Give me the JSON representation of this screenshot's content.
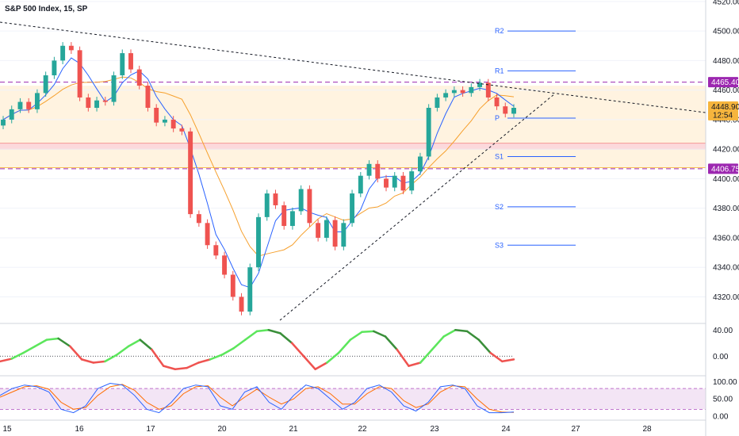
{
  "chart_data": {
    "type": "candlestick",
    "title": "S&P 500 Index, 15, SP",
    "price_axis": {
      "ylim": [
        4302,
        4521
      ],
      "ticks": [
        4320,
        4340,
        4360,
        4380,
        4400,
        4420,
        4440,
        4460,
        4480,
        4500,
        4520
      ],
      "tick_labels": [
        "4320.00",
        "4340.00",
        "4360.00",
        "4380.00",
        "4400.00",
        "4420.00",
        "4440.00",
        "4460.00",
        "4480.00",
        "4500.00",
        "4520.00"
      ]
    },
    "time_axis": {
      "labels": [
        "15",
        "16",
        "17",
        "20",
        "21",
        "22",
        "23",
        "24",
        "27",
        "28"
      ]
    },
    "price_tags": [
      {
        "label": "4465.40",
        "value": 4465.4,
        "color": "#9c27b0"
      },
      {
        "label": "4406.75",
        "value": 4406.75,
        "color": "#9c27b0"
      },
      {
        "label": "4448.90",
        "value": 4448.9,
        "countdown": "12:54",
        "color": "#f6b53d"
      }
    ],
    "pivots": [
      {
        "label": "R2",
        "value": 4500
      },
      {
        "label": "R1",
        "value": 4473
      },
      {
        "label": "P",
        "value": 4441
      },
      {
        "label": "S1",
        "value": 4415
      },
      {
        "label": "S2",
        "value": 4381
      },
      {
        "label": "S3",
        "value": 4355
      }
    ],
    "zones": [
      {
        "from": 4407.5,
        "to": 4463,
        "color": "#fff3e0"
      },
      {
        "from": 4420,
        "to": 4424,
        "color": "#fcd9dc"
      }
    ],
    "horizontal_levels": [
      4465.4,
      4406.75
    ],
    "close_series": [
      4440,
      4447,
      4452,
      4447,
      4458,
      4470,
      4480,
      4490,
      4487,
      4455,
      4448,
      4453,
      4452,
      4470,
      4485,
      4474,
      4463,
      4448,
      4438,
      4440,
      4434,
      4432,
      4376,
      4370,
      4355,
      4348,
      4335,
      4320,
      4310,
      4340,
      4374,
      4390,
      4382,
      4368,
      4378,
      4393,
      4370,
      4360,
      4372,
      4354,
      4370,
      4390,
      4402,
      4410,
      4400,
      4394,
      4402,
      4392,
      4405,
      4415,
      4448,
      4455,
      4458,
      4460,
      4458,
      4462,
      4465,
      4455,
      4449,
      4444,
      4448
    ],
    "indicator_1": {
      "ticks": [
        40,
        0
      ],
      "tick_labels": [
        "40.00",
        "0.00"
      ],
      "values": [
        -8,
        -4,
        5,
        15,
        25,
        27,
        15,
        -5,
        -10,
        -8,
        2,
        15,
        25,
        10,
        -15,
        -20,
        -18,
        -10,
        -5,
        2,
        12,
        25,
        38,
        40,
        35,
        20,
        0,
        -20,
        -10,
        5,
        25,
        37,
        38,
        30,
        10,
        -15,
        -10,
        10,
        30,
        40,
        38,
        25,
        5,
        -8,
        -5
      ]
    },
    "indicator_2": {
      "ticks": [
        100,
        50,
        0
      ],
      "tick_labels": [
        "100.00",
        "50.00",
        "0.00"
      ],
      "band": [
        20,
        80
      ],
      "k": [
        60,
        80,
        90,
        85,
        70,
        20,
        10,
        30,
        80,
        95,
        90,
        60,
        20,
        10,
        40,
        80,
        90,
        85,
        30,
        20,
        70,
        85,
        40,
        20,
        60,
        90,
        80,
        50,
        20,
        40,
        80,
        90,
        70,
        30,
        15,
        40,
        85,
        90,
        80,
        30,
        10,
        10,
        12
      ],
      "d": [
        55,
        70,
        85,
        88,
        78,
        40,
        20,
        25,
        60,
        85,
        92,
        75,
        40,
        20,
        30,
        65,
        85,
        88,
        55,
        30,
        55,
        78,
        55,
        35,
        50,
        80,
        85,
        65,
        35,
        35,
        65,
        85,
        80,
        45,
        25,
        35,
        70,
        88,
        85,
        50,
        20,
        12,
        11
      ]
    }
  }
}
